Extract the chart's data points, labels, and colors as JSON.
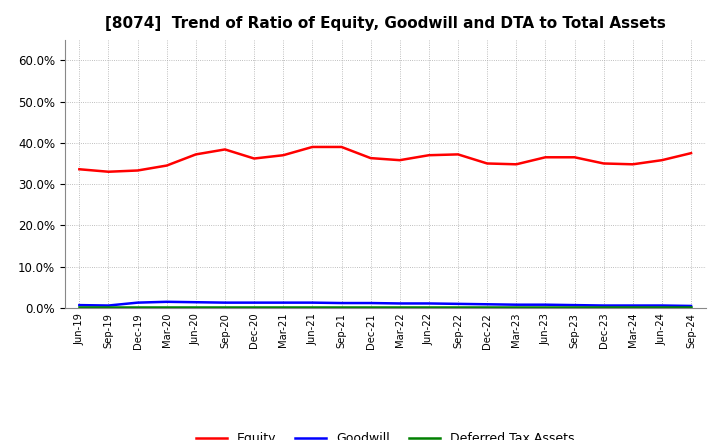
{
  "title": "[8074]  Trend of Ratio of Equity, Goodwill and DTA to Total Assets",
  "x_labels": [
    "Jun-19",
    "Sep-19",
    "Dec-19",
    "Mar-20",
    "Jun-20",
    "Sep-20",
    "Dec-20",
    "Mar-21",
    "Jun-21",
    "Sep-21",
    "Dec-21",
    "Mar-22",
    "Jun-22",
    "Sep-22",
    "Dec-22",
    "Mar-23",
    "Jun-23",
    "Sep-23",
    "Dec-23",
    "Mar-24",
    "Jun-24",
    "Sep-24"
  ],
  "equity": [
    0.336,
    0.33,
    0.333,
    0.345,
    0.372,
    0.384,
    0.362,
    0.37,
    0.39,
    0.39,
    0.363,
    0.358,
    0.37,
    0.372,
    0.35,
    0.348,
    0.365,
    0.365,
    0.35,
    0.348,
    0.358,
    0.375
  ],
  "goodwill": [
    0.007,
    0.006,
    0.013,
    0.015,
    0.014,
    0.013,
    0.013,
    0.013,
    0.013,
    0.012,
    0.012,
    0.011,
    0.011,
    0.01,
    0.009,
    0.008,
    0.008,
    0.007,
    0.006,
    0.006,
    0.006,
    0.005
  ],
  "dta": [
    0.003,
    0.003,
    0.003,
    0.003,
    0.003,
    0.003,
    0.003,
    0.003,
    0.003,
    0.003,
    0.003,
    0.003,
    0.003,
    0.003,
    0.003,
    0.003,
    0.003,
    0.003,
    0.003,
    0.003,
    0.003,
    0.003
  ],
  "equity_color": "#FF0000",
  "goodwill_color": "#0000FF",
  "dta_color": "#008000",
  "ylim": [
    0.0,
    0.65
  ],
  "yticks": [
    0.0,
    0.1,
    0.2,
    0.3,
    0.4,
    0.5,
    0.6
  ],
  "background_color": "#FFFFFF",
  "plot_bg_color": "#FFFFFF",
  "grid_color": "#AAAAAA",
  "title_fontsize": 11,
  "legend_labels": [
    "Equity",
    "Goodwill",
    "Deferred Tax Assets"
  ]
}
